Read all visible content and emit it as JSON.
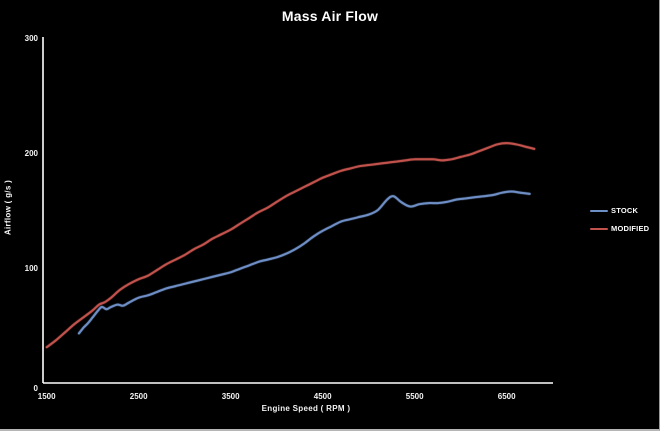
{
  "chart_data": {
    "type": "line",
    "title": "Mass Air Flow",
    "xlabel": "Engine Speed ( RPM )",
    "ylabel": "Airflow ( g/s )",
    "xlim": [
      1500,
      7000
    ],
    "ylim": [
      0,
      300
    ],
    "x_ticks": [
      "1500",
      "2500",
      "3500",
      "4500",
      "5500",
      "6500"
    ],
    "x_tick_values": [
      1500,
      2500,
      3500,
      4500,
      5500,
      6500
    ],
    "y_ticks": [
      "0",
      "100",
      "200",
      "300"
    ],
    "y_tick_values": [
      0,
      100,
      200,
      300
    ],
    "grid": false,
    "legend_position": "right",
    "colors": {
      "background": "#000000",
      "axis": "#ffffff",
      "text": "#f2f2f2",
      "stock_line": "#6e8ec6",
      "modified_line": "#c2524c"
    },
    "series": [
      {
        "name": "STOCK",
        "color": "#6e8ec6",
        "points": [
          [
            1850,
            43
          ],
          [
            1900,
            48
          ],
          [
            1950,
            52
          ],
          [
            2000,
            57
          ],
          [
            2060,
            63
          ],
          [
            2100,
            66
          ],
          [
            2150,
            64
          ],
          [
            2200,
            66
          ],
          [
            2270,
            68
          ],
          [
            2330,
            67
          ],
          [
            2400,
            70
          ],
          [
            2500,
            74
          ],
          [
            2600,
            76
          ],
          [
            2700,
            79
          ],
          [
            2800,
            82
          ],
          [
            2900,
            84
          ],
          [
            3000,
            86
          ],
          [
            3100,
            88
          ],
          [
            3200,
            90
          ],
          [
            3300,
            92
          ],
          [
            3400,
            94
          ],
          [
            3500,
            96
          ],
          [
            3600,
            99
          ],
          [
            3700,
            102
          ],
          [
            3800,
            105
          ],
          [
            3900,
            107
          ],
          [
            4000,
            109
          ],
          [
            4100,
            112
          ],
          [
            4200,
            116
          ],
          [
            4300,
            121
          ],
          [
            4400,
            127
          ],
          [
            4500,
            132
          ],
          [
            4600,
            136
          ],
          [
            4700,
            140
          ],
          [
            4800,
            142
          ],
          [
            4900,
            144
          ],
          [
            5000,
            146
          ],
          [
            5100,
            150
          ],
          [
            5200,
            159
          ],
          [
            5270,
            162
          ],
          [
            5350,
            157
          ],
          [
            5450,
            153
          ],
          [
            5550,
            155
          ],
          [
            5650,
            156
          ],
          [
            5750,
            156
          ],
          [
            5850,
            157
          ],
          [
            5950,
            159
          ],
          [
            6050,
            160
          ],
          [
            6150,
            161
          ],
          [
            6250,
            162
          ],
          [
            6350,
            163
          ],
          [
            6450,
            165
          ],
          [
            6550,
            166
          ],
          [
            6650,
            165
          ],
          [
            6750,
            164
          ]
        ]
      },
      {
        "name": "MODIFIED",
        "color": "#c2524c",
        "points": [
          [
            1500,
            31
          ],
          [
            1600,
            37
          ],
          [
            1700,
            44
          ],
          [
            1800,
            51
          ],
          [
            1900,
            57
          ],
          [
            2000,
            63
          ],
          [
            2070,
            68
          ],
          [
            2130,
            70
          ],
          [
            2200,
            74
          ],
          [
            2300,
            81
          ],
          [
            2400,
            86
          ],
          [
            2500,
            90
          ],
          [
            2600,
            93
          ],
          [
            2700,
            98
          ],
          [
            2800,
            103
          ],
          [
            2900,
            107
          ],
          [
            3000,
            111
          ],
          [
            3100,
            116
          ],
          [
            3200,
            120
          ],
          [
            3300,
            125
          ],
          [
            3400,
            129
          ],
          [
            3500,
            133
          ],
          [
            3600,
            138
          ],
          [
            3700,
            143
          ],
          [
            3800,
            148
          ],
          [
            3900,
            152
          ],
          [
            4000,
            157
          ],
          [
            4100,
            162
          ],
          [
            4200,
            166
          ],
          [
            4300,
            170
          ],
          [
            4400,
            174
          ],
          [
            4500,
            178
          ],
          [
            4600,
            181
          ],
          [
            4700,
            184
          ],
          [
            4800,
            186
          ],
          [
            4900,
            188
          ],
          [
            5000,
            189
          ],
          [
            5100,
            190
          ],
          [
            5200,
            191
          ],
          [
            5300,
            192
          ],
          [
            5400,
            193
          ],
          [
            5500,
            194
          ],
          [
            5600,
            194
          ],
          [
            5700,
            194
          ],
          [
            5800,
            193
          ],
          [
            5900,
            194
          ],
          [
            6000,
            196
          ],
          [
            6100,
            198
          ],
          [
            6200,
            201
          ],
          [
            6300,
            204
          ],
          [
            6400,
            207
          ],
          [
            6500,
            208
          ],
          [
            6600,
            207
          ],
          [
            6700,
            205
          ],
          [
            6800,
            203
          ]
        ]
      }
    ]
  },
  "legend": {
    "items": [
      {
        "label": "STOCK",
        "color": "#6e8ec6"
      },
      {
        "label": "MODIFIED",
        "color": "#c2524c"
      }
    ]
  }
}
